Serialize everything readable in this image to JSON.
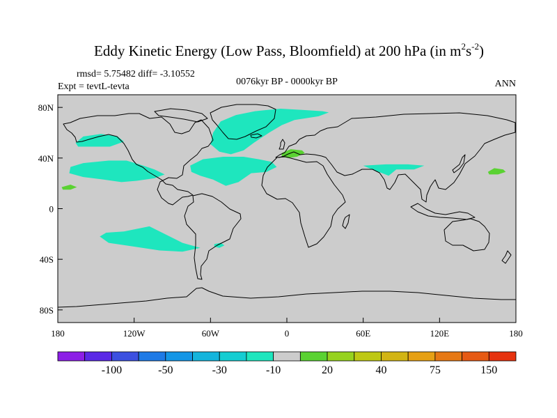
{
  "chart_data": {
    "type": "heatmap",
    "subtype": "filled-contour-world-map",
    "title": {
      "main": "Eddy Kinetic Energy (Low Pass, Bloomfield) at 200 hPa (in m",
      "sup1": "2",
      "mid": "s",
      "sup2": "-2",
      "end": ")"
    },
    "stats_label": "rmsd= 5.75482 diff= -3.10552",
    "expt_label": "Expt = tevtL-tevta",
    "period_label": "0076kyr BP - 0000kyr BP",
    "season_label": "ANN",
    "xlim": [
      -180,
      180
    ],
    "ylim": [
      -90,
      90
    ],
    "x_ticks": [
      {
        "value": -180,
        "label": "180"
      },
      {
        "value": -120,
        "label": "120W"
      },
      {
        "value": -60,
        "label": "60W"
      },
      {
        "value": 0,
        "label": "0"
      },
      {
        "value": 60,
        "label": "60E"
      },
      {
        "value": 120,
        "label": "120E"
      },
      {
        "value": 180,
        "label": "180"
      }
    ],
    "y_ticks": [
      {
        "value": 80,
        "label": "80N"
      },
      {
        "value": 40,
        "label": "40N"
      },
      {
        "value": 0,
        "label": "0"
      },
      {
        "value": -40,
        "label": "40S"
      },
      {
        "value": -80,
        "label": "80S"
      }
    ],
    "background_color": "#cccccc",
    "colorbar": {
      "colors": [
        "#8c1ee6",
        "#5a28e6",
        "#3c50e0",
        "#1e7ae6",
        "#1496e6",
        "#14b4dc",
        "#14cdd2",
        "#1ee6be",
        "#cccccc",
        "#5ad232",
        "#96d21e",
        "#bec814",
        "#d2b414",
        "#e6a014",
        "#e67814",
        "#e65a14",
        "#e6320f"
      ],
      "labels": [
        {
          "after_index": 1,
          "text": "-100"
        },
        {
          "after_index": 3,
          "text": "-50"
        },
        {
          "after_index": 5,
          "text": "-30"
        },
        {
          "after_index": 7,
          "text": "-10"
        },
        {
          "after_index": 9,
          "text": "20"
        },
        {
          "after_index": 11,
          "text": "40"
        },
        {
          "after_index": 13,
          "text": "75"
        },
        {
          "after_index": 15,
          "text": "150"
        }
      ]
    },
    "anomaly_regions": [
      {
        "name": "north-atlantic-subpolar",
        "level": "-10",
        "color": "#1ee6be",
        "polygon": [
          [
            -58,
            60
          ],
          [
            -52,
            69
          ],
          [
            -40,
            74
          ],
          [
            -25,
            77
          ],
          [
            -5,
            79
          ],
          [
            12,
            78
          ],
          [
            28,
            77
          ],
          [
            33,
            76
          ],
          [
            25,
            73
          ],
          [
            6,
            70
          ],
          [
            -4,
            66
          ],
          [
            -14,
            60
          ],
          [
            -26,
            52
          ],
          [
            -34,
            46
          ],
          [
            -44,
            43
          ],
          [
            -53,
            45
          ],
          [
            -60,
            51
          ]
        ]
      },
      {
        "name": "north-pacific-west",
        "level": "-10",
        "color": "#1ee6be",
        "polygon": [
          [
            -166,
            52
          ],
          [
            -160,
            57
          ],
          [
            -146,
            59
          ],
          [
            -133,
            57
          ],
          [
            -128,
            53
          ],
          [
            -139,
            49
          ],
          [
            -154,
            49
          ],
          [
            -164,
            49
          ]
        ]
      },
      {
        "name": "north-pacific-subtropical",
        "level": "-10",
        "color": "#1ee6be",
        "polygon": [
          [
            -170,
            33
          ],
          [
            -160,
            36
          ],
          [
            -140,
            38
          ],
          [
            -126,
            38
          ],
          [
            -116,
            35
          ],
          [
            -104,
            31
          ],
          [
            -96,
            27
          ],
          [
            -104,
            24
          ],
          [
            -118,
            22
          ],
          [
            -130,
            21
          ],
          [
            -144,
            23
          ],
          [
            -160,
            25
          ],
          [
            -171,
            28
          ]
        ]
      },
      {
        "name": "north-atlantic-subtropical",
        "level": "-10",
        "color": "#1ee6be",
        "polygon": [
          [
            -76,
            34
          ],
          [
            -66,
            39
          ],
          [
            -50,
            41
          ],
          [
            -34,
            41
          ],
          [
            -22,
            39
          ],
          [
            -12,
            37
          ],
          [
            -8,
            33
          ],
          [
            -16,
            29
          ],
          [
            -28,
            28
          ],
          [
            -38,
            21
          ],
          [
            -48,
            18
          ],
          [
            -58,
            23
          ],
          [
            -68,
            26
          ],
          [
            -75,
            29
          ]
        ]
      },
      {
        "name": "south-asia",
        "level": "-10",
        "color": "#1ee6be",
        "polygon": [
          [
            60,
            34
          ],
          [
            78,
            35
          ],
          [
            95,
            35
          ],
          [
            108,
            34
          ],
          [
            100,
            31
          ],
          [
            86,
            31
          ],
          [
            80,
            26
          ],
          [
            75,
            28
          ],
          [
            67,
            31
          ]
        ]
      },
      {
        "name": "south-pacific",
        "level": "-10",
        "color": "#1ee6be",
        "polygon": [
          [
            -147,
            -22
          ],
          [
            -142,
            -19
          ],
          [
            -128,
            -18
          ],
          [
            -108,
            -14
          ],
          [
            -98,
            -19
          ],
          [
            -82,
            -27
          ],
          [
            -68,
            -31
          ],
          [
            -82,
            -34
          ],
          [
            -100,
            -33
          ],
          [
            -120,
            -30
          ],
          [
            -140,
            -27
          ]
        ]
      },
      {
        "name": "south-atlantic-patch",
        "level": "-10",
        "color": "#1ee6be",
        "polygon": [
          [
            -57,
            -28
          ],
          [
            -52,
            -27
          ],
          [
            -49,
            -29
          ],
          [
            -53,
            -31
          ],
          [
            -57,
            -30
          ]
        ]
      },
      {
        "name": "mediterranean",
        "level": "20",
        "color": "#5ad232",
        "polygon": [
          [
            -4,
            44
          ],
          [
            3,
            47
          ],
          [
            12,
            46
          ],
          [
            14,
            44
          ],
          [
            8,
            41
          ],
          [
            1,
            40
          ],
          [
            -4,
            41
          ]
        ]
      },
      {
        "name": "north-pacific-east",
        "level": "20",
        "color": "#5ad232",
        "polygon": [
          [
            158,
            29
          ],
          [
            163,
            32
          ],
          [
            170,
            31
          ],
          [
            172,
            29
          ],
          [
            166,
            27
          ],
          [
            159,
            27
          ]
        ]
      },
      {
        "name": "eastern-pacific-small",
        "level": "20",
        "color": "#5ad232",
        "polygon": [
          [
            -177,
            17
          ],
          [
            -170,
            19
          ],
          [
            -165,
            17
          ],
          [
            -170,
            15
          ],
          [
            -176,
            15
          ]
        ]
      }
    ]
  }
}
